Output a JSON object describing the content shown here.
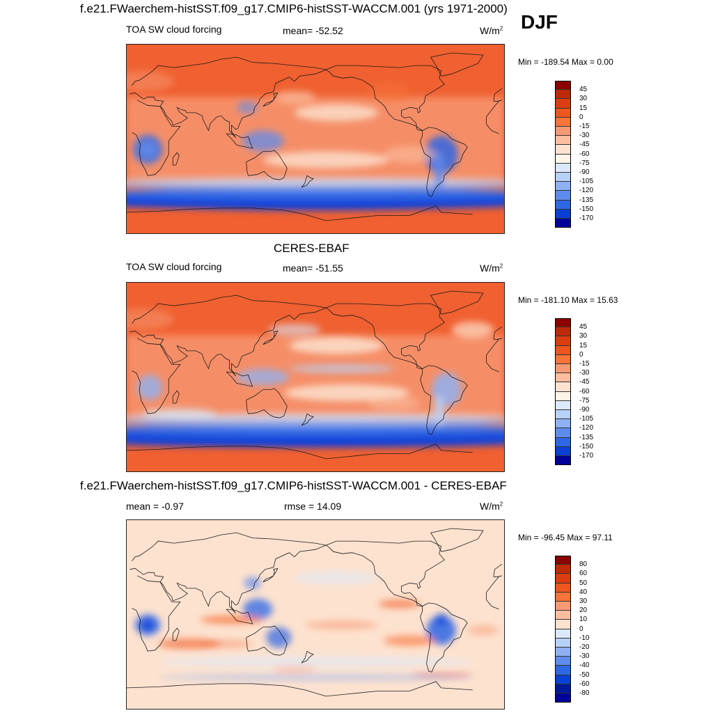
{
  "header": {
    "title": "f.e21.FWaerchem-histSST.f09_g17.CMIP6-histSST-WACCM.001 (yrs 1971-2000)",
    "season": "DJF"
  },
  "panels": [
    {
      "id": "model",
      "subtitle": "",
      "left_label": "TOA SW cloud forcing",
      "center_label": "mean= -52.52",
      "units": "W/m",
      "units_sup": "2",
      "minmax": "Min = -189.54 Max =   0.00",
      "scheme": "abs"
    },
    {
      "id": "obs",
      "subtitle": "CERES-EBAF",
      "left_label": "TOA SW cloud forcing",
      "center_label": "mean= -51.55",
      "units": "W/m",
      "units_sup": "2",
      "minmax": "Min = -181.10 Max =  15.63",
      "scheme": "abs"
    },
    {
      "id": "diff",
      "subtitle": "f.e21.FWaerchem-histSST.f09_g17.CMIP6-histSST-WACCM.001 - CERES-EBAF",
      "left_label": "mean =  -0.97",
      "center_label": "rmse =  14.09",
      "units": "W/m",
      "units_sup": "2",
      "minmax": "Min = -96.45 Max =  97.11",
      "scheme": "diff"
    }
  ],
  "colorbars": {
    "abs": {
      "labels": [
        "45",
        "30",
        "15",
        "0",
        "-15",
        "-30",
        "-45",
        "-60",
        "-75",
        "-90",
        "-105",
        "-120",
        "-135",
        "-150",
        "-170"
      ],
      "colors": [
        "#8b0000",
        "#c0280a",
        "#dd3c10",
        "#f05520",
        "#f7743a",
        "#f79a74",
        "#fbbfa0",
        "#fde2cf",
        "#fff4e8",
        "#dbe9fb",
        "#b8d1f7",
        "#8fb1f3",
        "#5f8cec",
        "#2f66e5",
        "#0a3fd8",
        "#00009a"
      ]
    },
    "diff": {
      "labels": [
        "80",
        "60",
        "50",
        "40",
        "30",
        "20",
        "10",
        "0",
        "-10",
        "-20",
        "-30",
        "-40",
        "-50",
        "-60",
        "-80"
      ],
      "colors": [
        "#8b0000",
        "#c0280a",
        "#dd3c10",
        "#f05520",
        "#f7743a",
        "#f79a74",
        "#fbbfa0",
        "#fde2cf",
        "#dbe9fb",
        "#b8d1f7",
        "#8fb1f3",
        "#5f8cec",
        "#2f66e5",
        "#0a3fd8",
        "#00189e",
        "#00009a"
      ]
    }
  },
  "chart_data": [
    {
      "type": "heatmap",
      "title": "TOA SW cloud forcing",
      "mean": -52.52,
      "min": -189.54,
      "max": 0.0,
      "levels": [
        45,
        30,
        15,
        0,
        -15,
        -30,
        -45,
        -60,
        -75,
        -90,
        -105,
        -120,
        -135,
        -150,
        -170
      ]
    },
    {
      "type": "heatmap",
      "title": "TOA SW cloud forcing",
      "mean": -51.55,
      "min": -181.1,
      "max": 15.63,
      "levels": [
        45,
        30,
        15,
        0,
        -15,
        -30,
        -45,
        -60,
        -75,
        -90,
        -105,
        -120,
        -135,
        -150,
        -170
      ]
    },
    {
      "type": "heatmap",
      "mean": -0.97,
      "rmse": 14.09,
      "min": -96.45,
      "max": 97.11,
      "levels": [
        80,
        60,
        50,
        40,
        30,
        20,
        10,
        0,
        -10,
        -20,
        -30,
        -40,
        -50,
        -60,
        -80
      ]
    }
  ]
}
